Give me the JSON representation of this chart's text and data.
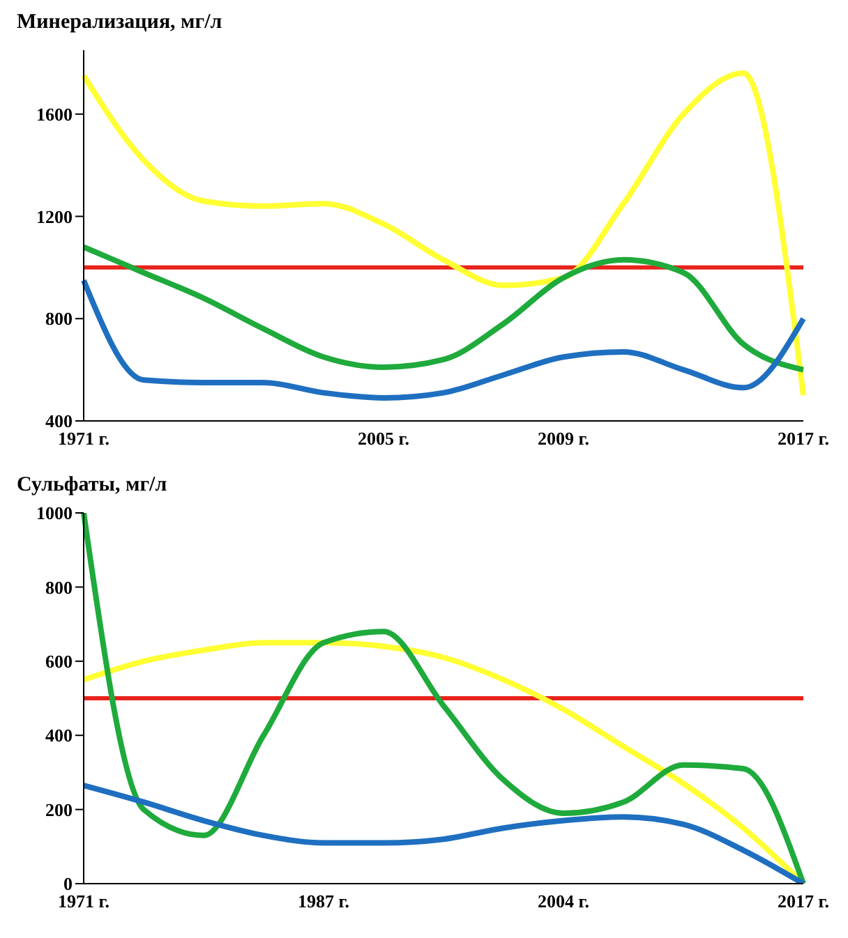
{
  "chart_data": [
    {
      "type": "line",
      "title": "Минерализация, мг/л",
      "categories": [
        "1971 г.",
        null,
        null,
        null,
        null,
        "2005 г.",
        null,
        null,
        "2009 г.",
        null,
        null,
        null,
        "2017 г."
      ],
      "series": [
        {
          "color": "#ffff33",
          "values": [
            1750,
            1420,
            1260,
            1240,
            1250,
            1170,
            1030,
            930,
            960,
            1250,
            1600,
            1760,
            500
          ]
        },
        {
          "color": "#1faa3c",
          "values": [
            1080,
            980,
            880,
            760,
            650,
            610,
            640,
            780,
            960,
            1030,
            980,
            700,
            600
          ]
        },
        {
          "color": "#1f6fc0",
          "values": [
            950,
            560,
            550,
            550,
            510,
            490,
            510,
            580,
            650,
            670,
            600,
            530,
            800
          ]
        }
      ],
      "ylim": [
        400,
        1850
      ],
      "yticks": [
        400,
        800,
        1200,
        1600
      ],
      "grid": false,
      "legend": false,
      "marker": "none",
      "line_style": "solid",
      "ref_lines": [
        {
          "axis": "y",
          "value": 1000,
          "color": "#e8231c"
        }
      ]
    },
    {
      "type": "line",
      "title": "Сульфаты, мг/л",
      "categories": [
        "1971 г.",
        null,
        null,
        null,
        "1987 г.",
        null,
        null,
        null,
        "2004 г.",
        null,
        null,
        null,
        "2017 г."
      ],
      "series": [
        {
          "color": "#ffff33",
          "values": [
            550,
            600,
            630,
            650,
            650,
            640,
            610,
            550,
            470,
            370,
            270,
            150,
            0
          ]
        },
        {
          "color": "#1faa3c",
          "values": [
            1000,
            200,
            130,
            400,
            650,
            680,
            480,
            280,
            190,
            220,
            320,
            310,
            0
          ]
        },
        {
          "color": "#1f6fc0",
          "values": [
            265,
            220,
            170,
            130,
            110,
            110,
            120,
            150,
            170,
            180,
            160,
            90,
            0
          ]
        }
      ],
      "ylim": [
        0,
        1000
      ],
      "yticks": [
        0,
        200,
        400,
        600,
        800,
        1000
      ],
      "grid": false,
      "legend": false,
      "marker": "none",
      "line_style": "solid",
      "ref_lines": [
        {
          "axis": "y",
          "value": 500,
          "color": "#e8231c"
        }
      ]
    }
  ]
}
